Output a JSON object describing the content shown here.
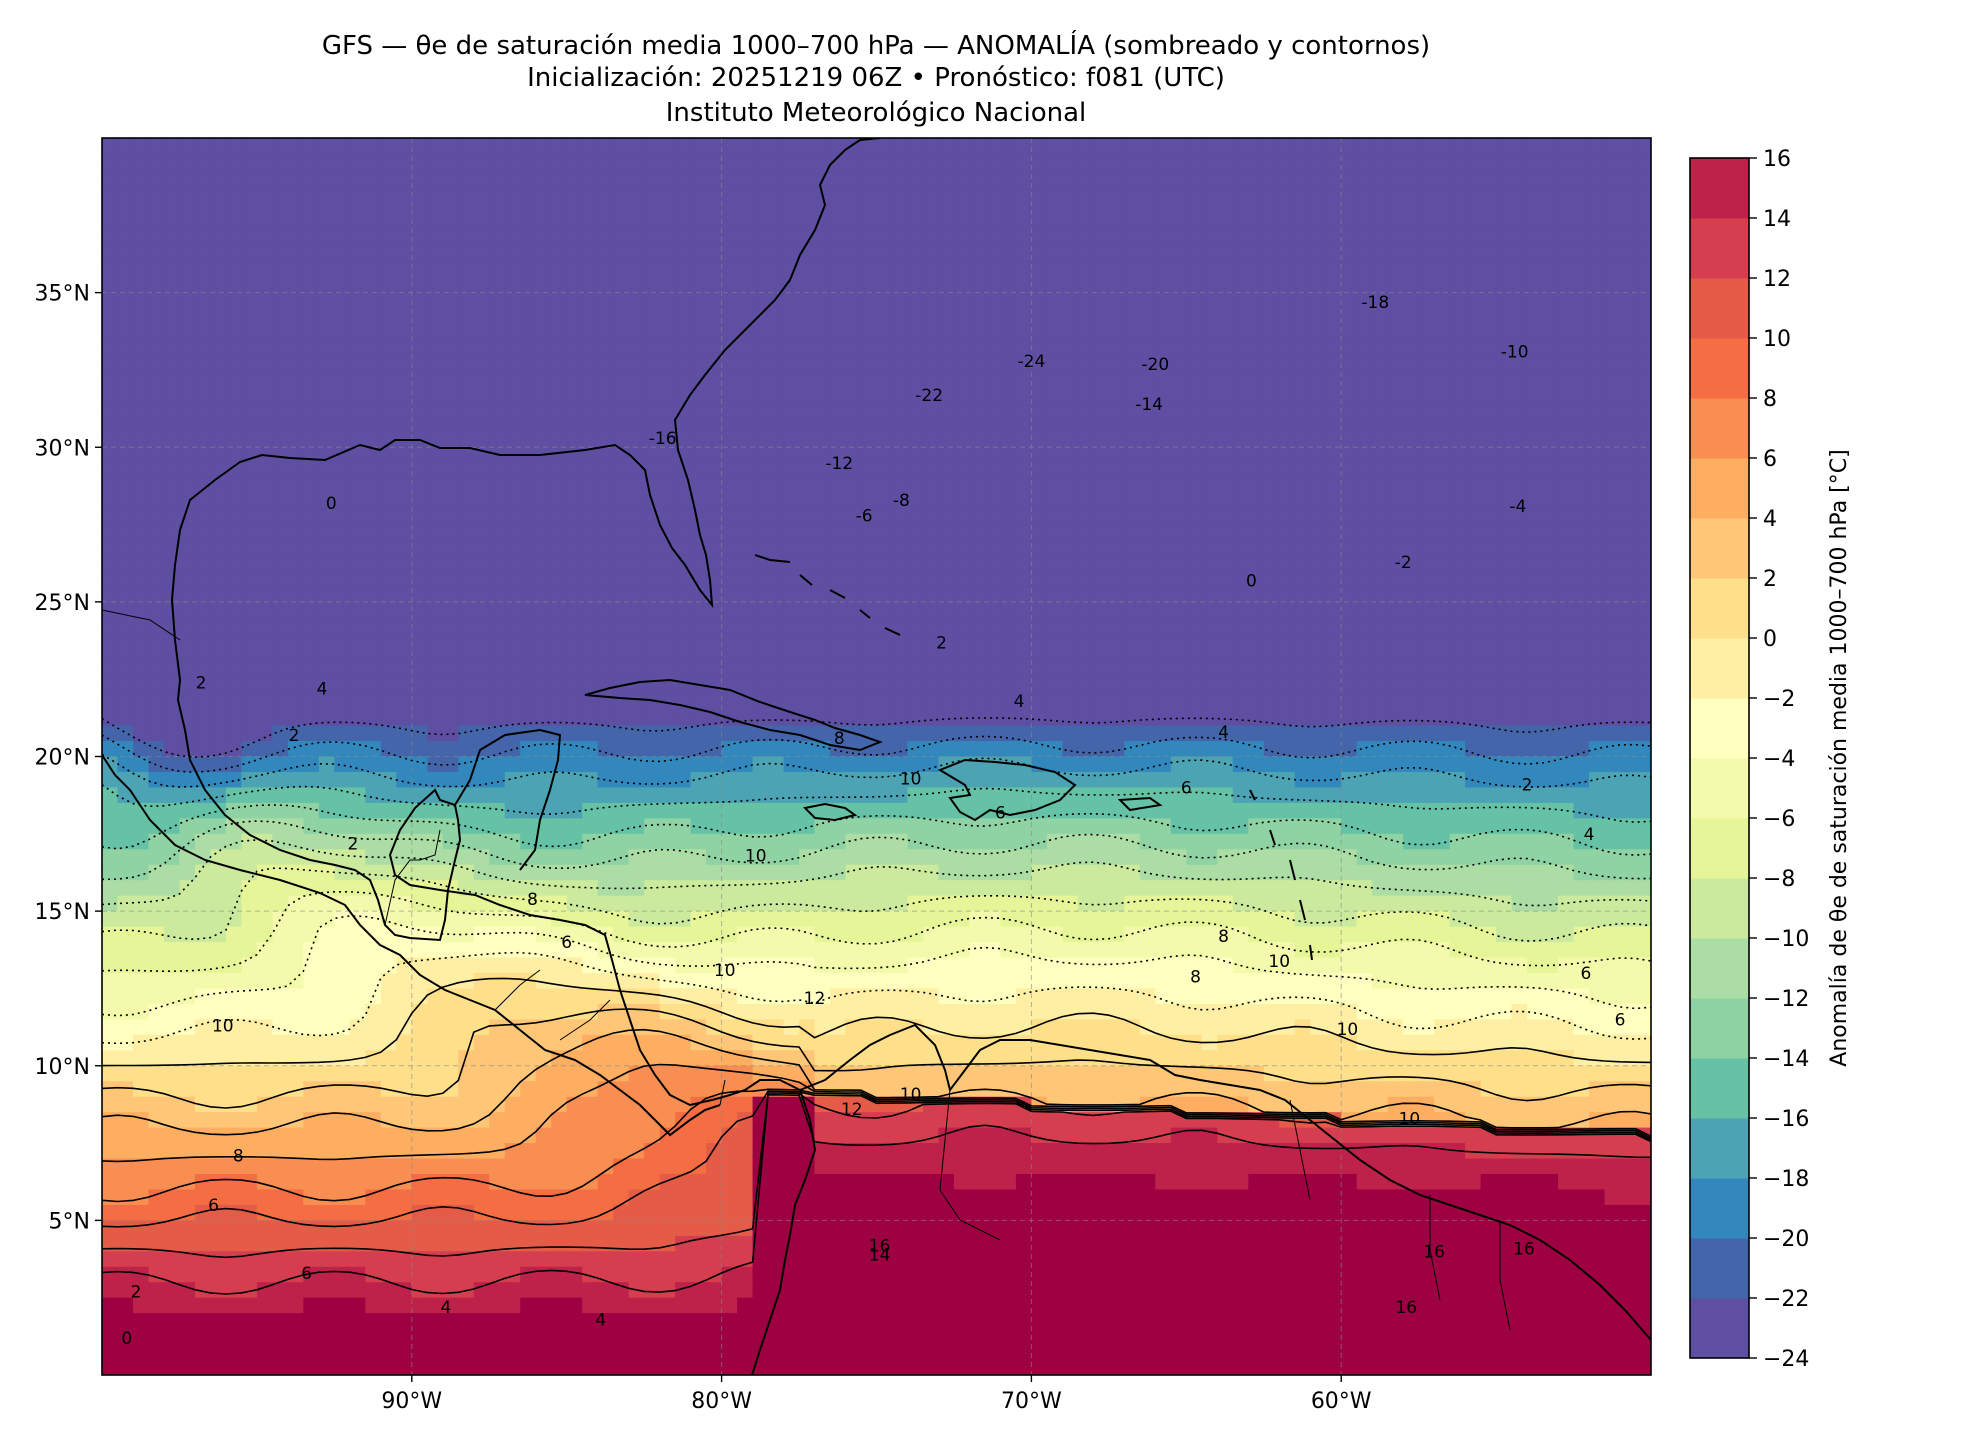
{
  "title": {
    "line1": "GFS — θe de saturación media 1000–700 hPa — ANOMALÍA (sombreado y contornos)",
    "line2": "Inicialización: 20251219 06Z   •   Pronóstico: f081 (UTC)",
    "line3": "Instituto Meteorológico Nacional"
  },
  "map": {
    "lon_range": [
      -100,
      -50
    ],
    "lat_range": [
      0,
      40
    ],
    "lon_ticks": [
      {
        "value": -90,
        "label": "90°W"
      },
      {
        "value": -80,
        "label": "80°W"
      },
      {
        "value": -70,
        "label": "70°W"
      },
      {
        "value": -60,
        "label": "60°W"
      }
    ],
    "lat_ticks": [
      {
        "value": 35,
        "label": "35°N"
      },
      {
        "value": 30,
        "label": "30°N"
      },
      {
        "value": 25,
        "label": "25°N"
      },
      {
        "value": 20,
        "label": "20°N"
      },
      {
        "value": 15,
        "label": "15°N"
      },
      {
        "value": 10,
        "label": "10°N"
      },
      {
        "value": 5,
        "label": "5°N"
      }
    ],
    "gridlines": true
  },
  "colorbar": {
    "label": "Anomalía de θe de saturación media 1000–700 hPa [°C]",
    "levels": [
      -24,
      -22,
      -20,
      -18,
      -16,
      -14,
      -12,
      -10,
      -8,
      -6,
      -4,
      -2,
      0,
      2,
      4,
      6,
      8,
      10,
      12,
      14,
      16
    ],
    "tick_labels": [
      "−24",
      "−22",
      "−20",
      "−18",
      "−16",
      "−14",
      "−12",
      "−10",
      "−8",
      "−6",
      "−4",
      "−2",
      "0",
      "2",
      "4",
      "6",
      "8",
      "10",
      "12",
      "14",
      "16"
    ],
    "colors": [
      "#5e4fa2",
      "#4565ab",
      "#3288bd",
      "#4ca3b3",
      "#66c2a5",
      "#8fd2a4",
      "#abdda4",
      "#cbea9d",
      "#e6f598",
      "#f3faac",
      "#ffffbf",
      "#feefa4",
      "#fee08b",
      "#fdc777",
      "#fdae61",
      "#f98e52",
      "#f46d43",
      "#e45c47",
      "#d53e4f",
      "#be2149",
      "#9e0142"
    ]
  },
  "contour_labels": [
    {
      "text": "-24",
      "lon": -70.0,
      "lat": 32.6
    },
    {
      "text": "-22",
      "lon": -73.3,
      "lat": 31.5
    },
    {
      "text": "-20",
      "lon": -66.0,
      "lat": 32.5
    },
    {
      "text": "-18",
      "lon": -58.9,
      "lat": 34.5
    },
    {
      "text": "-16",
      "lon": -81.9,
      "lat": 30.1
    },
    {
      "text": "-14",
      "lon": -66.2,
      "lat": 31.2
    },
    {
      "text": "-12",
      "lon": -76.2,
      "lat": 29.3
    },
    {
      "text": "-10",
      "lon": -54.4,
      "lat": 32.9
    },
    {
      "text": "-8",
      "lon": -74.2,
      "lat": 28.1
    },
    {
      "text": "-6",
      "lon": -75.4,
      "lat": 27.6
    },
    {
      "text": "-4",
      "lon": -54.3,
      "lat": 27.9
    },
    {
      "text": "-2",
      "lon": -58.0,
      "lat": 26.1
    },
    {
      "text": "0",
      "lon": -92.6,
      "lat": 28.0
    },
    {
      "text": "0",
      "lon": -62.9,
      "lat": 25.5
    },
    {
      "text": "2",
      "lon": -72.9,
      "lat": 23.5
    },
    {
      "text": "2",
      "lon": -96.8,
      "lat": 22.2
    },
    {
      "text": "2",
      "lon": -93.8,
      "lat": 20.5
    },
    {
      "text": "2",
      "lon": -91.9,
      "lat": 17.0
    },
    {
      "text": "2",
      "lon": -54.0,
      "lat": 18.9
    },
    {
      "text": "4",
      "lon": -92.9,
      "lat": 22.0
    },
    {
      "text": "4",
      "lon": -70.4,
      "lat": 21.6
    },
    {
      "text": "4",
      "lon": -63.8,
      "lat": 20.6
    },
    {
      "text": "4",
      "lon": -52.0,
      "lat": 17.3
    },
    {
      "text": "6",
      "lon": -65.0,
      "lat": 18.8
    },
    {
      "text": "6",
      "lon": -71.0,
      "lat": 18.0
    },
    {
      "text": "6",
      "lon": -85.0,
      "lat": 13.8
    },
    {
      "text": "6",
      "lon": -52.1,
      "lat": 12.8
    },
    {
      "text": "6",
      "lon": -51.0,
      "lat": 11.3
    },
    {
      "text": "8",
      "lon": -76.2,
      "lat": 20.4
    },
    {
      "text": "8",
      "lon": -86.1,
      "lat": 15.2
    },
    {
      "text": "8",
      "lon": -63.8,
      "lat": 14.0
    },
    {
      "text": "8",
      "lon": -64.7,
      "lat": 12.7
    },
    {
      "text": "8",
      "lon": -95.6,
      "lat": 6.9
    },
    {
      "text": "10",
      "lon": -78.9,
      "lat": 16.6
    },
    {
      "text": "10",
      "lon": -73.9,
      "lat": 19.1
    },
    {
      "text": "10",
      "lon": -79.9,
      "lat": 12.9
    },
    {
      "text": "10",
      "lon": -96.1,
      "lat": 11.1
    },
    {
      "text": "10",
      "lon": -62.0,
      "lat": 13.2
    },
    {
      "text": "10",
      "lon": -59.8,
      "lat": 11.0
    },
    {
      "text": "10",
      "lon": -57.8,
      "lat": 8.1
    },
    {
      "text": "10",
      "lon": -73.9,
      "lat": 8.9
    },
    {
      "text": "12",
      "lon": -77.0,
      "lat": 12.0
    },
    {
      "text": "12",
      "lon": -75.8,
      "lat": 8.4
    },
    {
      "text": "14",
      "lon": -74.9,
      "lat": 3.7
    },
    {
      "text": "16",
      "lon": -74.9,
      "lat": 4.0
    },
    {
      "text": "16",
      "lon": -57.0,
      "lat": 3.8
    },
    {
      "text": "16",
      "lon": -54.1,
      "lat": 3.9
    },
    {
      "text": "16",
      "lon": -57.9,
      "lat": 2.0
    },
    {
      "text": "6",
      "lon": -96.4,
      "lat": 5.3
    },
    {
      "text": "6",
      "lon": -93.4,
      "lat": 3.1
    },
    {
      "text": "2",
      "lon": -98.9,
      "lat": 2.5
    },
    {
      "text": "0",
      "lon": -99.2,
      "lat": 1.0
    },
    {
      "text": "4",
      "lon": -88.9,
      "lat": 2.0
    },
    {
      "text": "4",
      "lon": -83.9,
      "lat": 1.6
    }
  ]
}
